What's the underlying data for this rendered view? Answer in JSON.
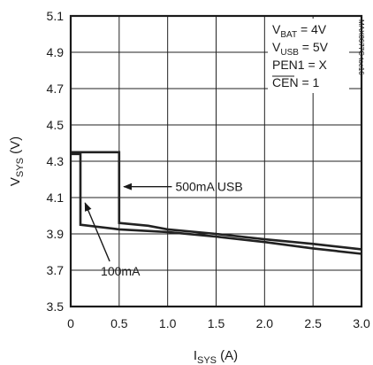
{
  "chart_data": {
    "type": "line",
    "title": "",
    "xlabel": {
      "main": "I",
      "sub": "SYS",
      "unit": " (A)"
    },
    "ylabel": {
      "main": "V",
      "sub": "SYS",
      "unit": " (V)"
    },
    "xlim": [
      0,
      3.0
    ],
    "ylim": [
      3.5,
      5.1
    ],
    "x_ticks": [
      "0",
      "0.5",
      "1.0",
      "1.5",
      "2.0",
      "2.5",
      "3.0"
    ],
    "y_ticks": [
      "3.5",
      "3.7",
      "3.9",
      "4.1",
      "4.3",
      "4.5",
      "4.7",
      "4.9",
      "5.1"
    ],
    "grid": true,
    "conditions": [
      {
        "main": "V",
        "sub": "BAT",
        "rest": " = 4V"
      },
      {
        "main": "V",
        "sub": "USB",
        "rest": " = 5V"
      },
      {
        "main": "PEN1 = X",
        "sub": "",
        "rest": ""
      },
      {
        "main": "CEN",
        "sub": "",
        "rest": " = 1",
        "overline": true
      }
    ],
    "figure_code": "MAX8677C toc16",
    "series": [
      {
        "name": "500mA USB",
        "x": [
          0.0,
          0.5,
          0.5,
          0.8,
          1.0,
          1.5,
          2.0,
          2.5,
          3.0
        ],
        "y": [
          4.35,
          4.35,
          3.96,
          3.945,
          3.925,
          3.9,
          3.87,
          3.845,
          3.815
        ]
      },
      {
        "name": "100mA",
        "x": [
          0.0,
          0.1,
          0.1,
          0.5,
          1.0,
          1.5,
          2.0,
          2.5,
          3.0
        ],
        "y": [
          4.34,
          4.34,
          3.95,
          3.925,
          3.91,
          3.885,
          3.855,
          3.82,
          3.79
        ]
      }
    ],
    "annotations": [
      {
        "text": "500mA USB",
        "series": 0,
        "point": [
          0.53,
          4.16
        ],
        "label_at": [
          1.08,
          4.16
        ]
      },
      {
        "text": "100mA",
        "series": 1,
        "point": [
          0.13,
          4.08
        ],
        "label_at": [
          0.42,
          3.71
        ]
      }
    ]
  }
}
